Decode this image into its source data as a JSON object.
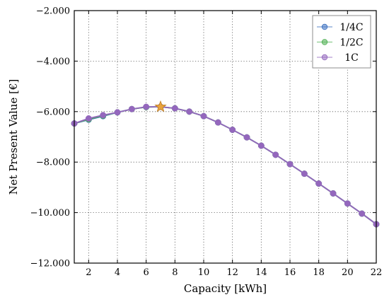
{
  "chart_data": {
    "type": "line",
    "title": "",
    "xlabel": "Capacity [kWh]",
    "ylabel": "Net Present Value [€]",
    "xlim": [
      1,
      22
    ],
    "ylim": [
      -12000,
      -2000
    ],
    "grid": true,
    "legend_position": "top-right",
    "x_ticks": [
      2,
      4,
      6,
      8,
      10,
      12,
      14,
      16,
      18,
      20,
      22
    ],
    "x_tick_labels": [
      "2",
      "4",
      "6",
      "8",
      "10",
      "12",
      "14",
      "16",
      "18",
      "20",
      "22"
    ],
    "y_ticks": [
      -12000,
      -10000,
      -8000,
      -6000,
      -4000,
      -2000
    ],
    "y_tick_labels": [
      "−12.000",
      "−10.000",
      "−8.000",
      "−6.000",
      "−4.000",
      "−2.000"
    ],
    "x": [
      1,
      2,
      3,
      4,
      5,
      6,
      7,
      8,
      9,
      10,
      11,
      12,
      13,
      14,
      15,
      16,
      17,
      18,
      19,
      20,
      21,
      22
    ],
    "series": [
      {
        "name": "1/4C",
        "color": "#3a6fbf",
        "marker": "circle",
        "values": [
          -6470,
          -6320,
          -6180,
          -6030,
          -5900,
          -5820,
          -5810,
          -5870,
          -6000,
          -6180,
          -6430,
          -6720,
          -7020,
          -7350,
          -7710,
          -8080,
          -8460,
          -8850,
          -9240,
          -9640,
          -10040,
          -10460
        ]
      },
      {
        "name": "1/2C",
        "color": "#4caf50",
        "marker": "circle",
        "values": [
          -6470,
          -6300,
          -6160,
          -6030,
          -5900,
          -5820,
          -5810,
          -5870,
          -6000,
          -6180,
          -6430,
          -6720,
          -7020,
          -7350,
          -7710,
          -8080,
          -8460,
          -8850,
          -9240,
          -9640,
          -10040,
          -10460
        ]
      },
      {
        "name": "1C",
        "color": "#9467bd",
        "marker": "circle",
        "values": [
          -6470,
          -6270,
          -6140,
          -6030,
          -5900,
          -5810,
          -5810,
          -5870,
          -6000,
          -6180,
          -6430,
          -6720,
          -7020,
          -7350,
          -7710,
          -8080,
          -8460,
          -8850,
          -9240,
          -9640,
          -10040,
          -10460
        ]
      }
    ],
    "optimum_marker": {
      "x": 7,
      "y": -5810,
      "color": "#e8a33d",
      "marker": "star"
    }
  }
}
